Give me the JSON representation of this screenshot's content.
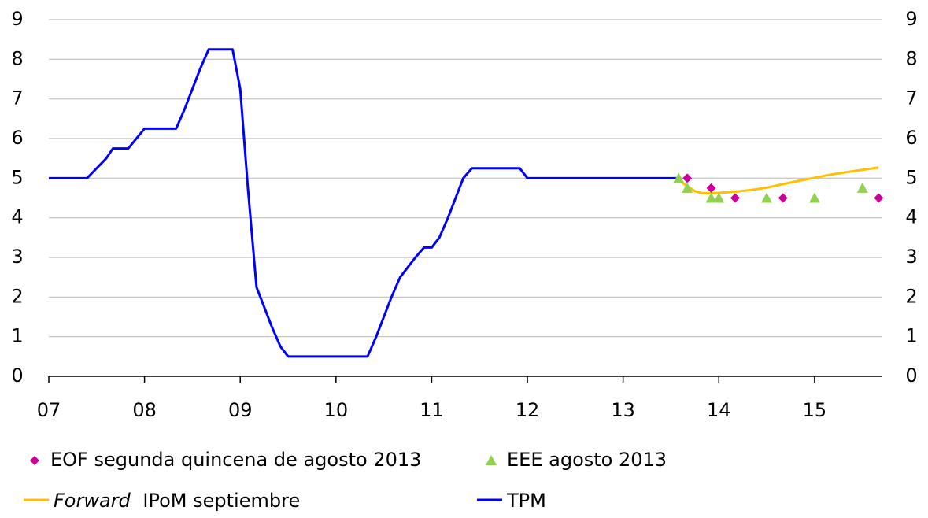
{
  "chart_data": {
    "type": "line",
    "xlim": [
      2007,
      2015.7
    ],
    "xticks": [
      {
        "value": 2007,
        "label": "07"
      },
      {
        "value": 2008,
        "label": "08"
      },
      {
        "value": 2009,
        "label": "09"
      },
      {
        "value": 2010,
        "label": "10"
      },
      {
        "value": 2011,
        "label": "11"
      },
      {
        "value": 2012,
        "label": "12"
      },
      {
        "value": 2013,
        "label": "13"
      },
      {
        "value": 2014,
        "label": "14"
      },
      {
        "value": 2015,
        "label": "15"
      }
    ],
    "ylim": [
      0,
      9
    ],
    "yticks": [
      0,
      1,
      2,
      3,
      4,
      5,
      6,
      7,
      8,
      9
    ],
    "grid": true,
    "series": [
      {
        "name": "EOF segunda quincena de agosto 2013",
        "color": "#cc0099",
        "marker": "diamond",
        "x": [
          2013.67,
          2013.92,
          2014.17,
          2014.67,
          2015.67
        ],
        "values": [
          5,
          4.75,
          4.5,
          4.5,
          4.5
        ]
      },
      {
        "name": "EEE agosto 2013",
        "color": "#92d050",
        "marker": "triangle",
        "x": [
          2013.58,
          2013.67,
          2013.92,
          2014.0,
          2014.5,
          2015.0,
          2015.5
        ],
        "values": [
          5,
          4.75,
          4.5,
          4.5,
          4.5,
          4.5,
          4.75
        ]
      },
      {
        "name": "Forward IPoM septiembre",
        "color": "#ffc000",
        "marker": "line",
        "x": [
          2013.58,
          2013.67,
          2013.75,
          2013.83,
          2013.92,
          2014.0,
          2014.17,
          2014.33,
          2014.5,
          2014.67,
          2014.83,
          2015.0,
          2015.17,
          2015.33,
          2015.5,
          2015.67
        ],
        "values": [
          4.95,
          4.8,
          4.67,
          4.62,
          4.62,
          4.63,
          4.66,
          4.7,
          4.76,
          4.85,
          4.93,
          5.01,
          5.09,
          5.15,
          5.21,
          5.27
        ]
      },
      {
        "name": "TPM",
        "color": "#0000ff",
        "marker": "line",
        "x": [
          2007.0,
          2007.4,
          2007.5,
          2007.6,
          2007.67,
          2007.83,
          2008.0,
          2008.33,
          2008.42,
          2008.5,
          2008.58,
          2008.67,
          2008.92,
          2009.0,
          2009.08,
          2009.17,
          2009.25,
          2009.33,
          2009.42,
          2009.5,
          2010.33,
          2010.42,
          2010.5,
          2010.58,
          2010.67,
          2010.75,
          2010.83,
          2010.92,
          2011.0,
          2011.08,
          2011.17,
          2011.25,
          2011.33,
          2011.42,
          2011.92,
          2012.0,
          2013.58
        ],
        "values": [
          5,
          5,
          5.25,
          5.5,
          5.75,
          5.75,
          6.25,
          6.25,
          6.75,
          7.25,
          7.75,
          8.25,
          8.25,
          7.25,
          4.75,
          2.25,
          1.75,
          1.25,
          0.75,
          0.5,
          0.5,
          1,
          1.5,
          2,
          2.5,
          2.75,
          3,
          3.25,
          3.25,
          3.5,
          4,
          4.5,
          5,
          5.25,
          5.25,
          5,
          5
        ]
      }
    ]
  }
}
